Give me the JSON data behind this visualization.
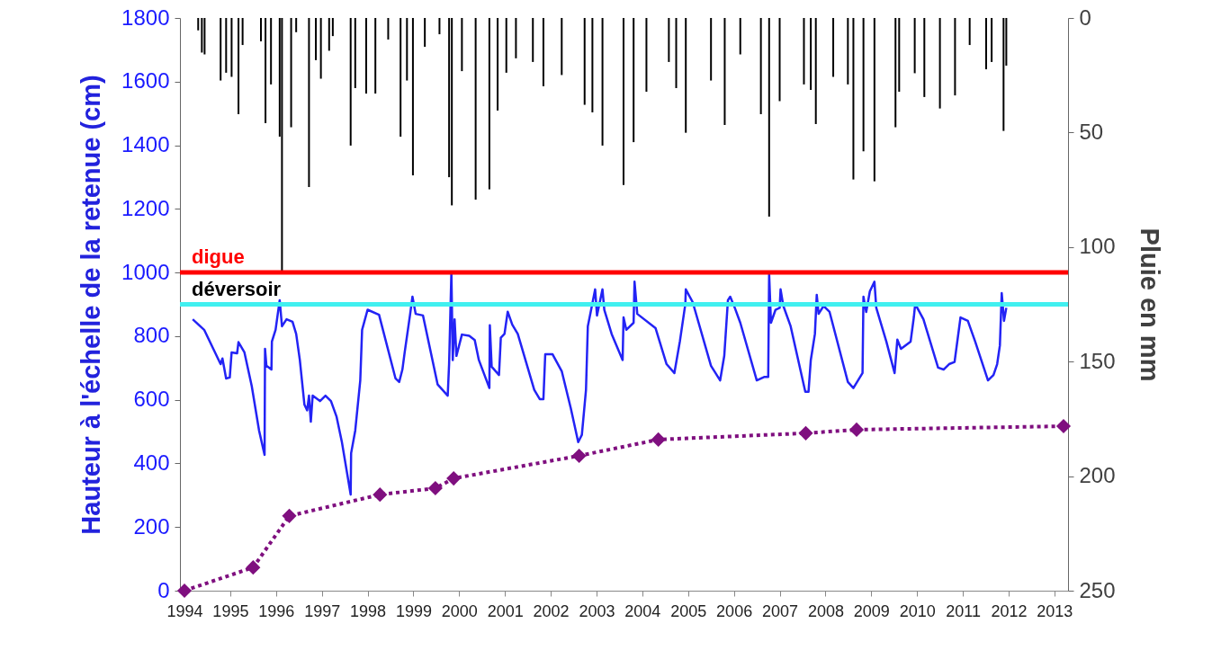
{
  "chart_data": {
    "type": "line",
    "ylabel": "Hauteur à l'échelle de la retenue (cm)",
    "y2label": "Pluie en mm",
    "xlim": [
      1994,
      2013.2
    ],
    "xticks": [
      1994,
      1995,
      1996,
      1997,
      1998,
      1999,
      2000,
      2001,
      2002,
      2003,
      2004,
      2005,
      2006,
      2007,
      2008,
      2009,
      2010,
      2011,
      2012,
      2013
    ],
    "grid": false,
    "ylim": [
      0,
      1800
    ],
    "yticks": [
      0,
      200,
      400,
      600,
      800,
      1000,
      1200,
      1400,
      1600,
      1800
    ],
    "y2lim": [
      250,
      0
    ],
    "y2ticks": [
      0,
      50,
      100,
      150,
      200,
      250
    ],
    "ref_lines": [
      {
        "axis": "y",
        "value": 1000,
        "label": "digue",
        "color": "#ff0000"
      },
      {
        "axis": "y",
        "value": 900,
        "label": "déversoir",
        "color": "#40f0f0"
      }
    ],
    "series": [
      {
        "type": "bar",
        "axis": "y2",
        "color": "#000000",
        "x": [
          1994.3,
          1994.38,
          1994.44,
          1994.79,
          1994.91,
          1995.03,
          1995.18,
          1995.27,
          1995.67,
          1995.77,
          1995.89,
          1996.08,
          1996.13,
          1996.33,
          1996.44,
          1996.72,
          1996.87,
          1996.98,
          1997.16,
          1997.24,
          1997.63,
          1997.73,
          1997.97,
          1998.17,
          1998.45,
          1998.72,
          1998.86,
          1998.99,
          1999.25,
          1999.57,
          1999.78,
          1999.84,
          2000.06,
          2000.36,
          2000.66,
          2000.84,
          2001.03,
          2001.24,
          2001.61,
          2001.84,
          2002.24,
          2002.74,
          2002.91,
          2003.13,
          2003.59,
          2003.81,
          2004.09,
          2004.58,
          2004.74,
          2004.95,
          2005.5,
          2005.8,
          2006.14,
          2006.59,
          2006.77,
          2007.0,
          2007.53,
          2007.68,
          2007.79,
          2008.17,
          2008.49,
          2008.61,
          2008.83,
          2009.07,
          2009.53,
          2009.61,
          2009.95,
          2010.16,
          2010.5,
          2010.83,
          2011.15,
          2011.51,
          2011.63,
          2011.89,
          2011.95
        ],
        "values": [
          5.4,
          15.1,
          15.9,
          27.3,
          23.9,
          25.7,
          42.0,
          11.8,
          10.2,
          45.9,
          29.0,
          51.8,
          110.3,
          47.7,
          6.2,
          73.8,
          18.4,
          26.5,
          14.3,
          7.9,
          55.7,
          30.6,
          33.0,
          33.0,
          9.4,
          51.8,
          27.3,
          68.7,
          12.6,
          7.1,
          69.5,
          81.8,
          23.2,
          79.3,
          74.8,
          40.4,
          23.9,
          17.6,
          19.2,
          29.8,
          24.9,
          37.9,
          41.2,
          55.7,
          72.9,
          54.2,
          32.2,
          19.2,
          30.6,
          50.1,
          27.3,
          46.7,
          15.9,
          42.0,
          86.7,
          36.3,
          29.0,
          31.4,
          46.3,
          25.7,
          29.0,
          70.5,
          58.2,
          71.3,
          47.7,
          32.2,
          24.1,
          34.5,
          39.5,
          33.8,
          11.8,
          22.4,
          19.2,
          49.3,
          20.8
        ]
      },
      {
        "type": "line",
        "color": "#2323f5",
        "x": [
          1994.18,
          1994.43,
          1994.79,
          1994.83,
          1994.91,
          1994.99,
          1995.03,
          1995.15,
          1995.18,
          1995.31,
          1995.47,
          1995.63,
          1995.75,
          1995.76,
          1995.79,
          1995.9,
          1995.91,
          1995.99,
          1996.08,
          1996.13,
          1996.23,
          1996.36,
          1996.44,
          1996.52,
          1996.62,
          1996.68,
          1996.72,
          1996.76,
          1996.8,
          1996.96,
          1997.08,
          1997.2,
          1997.32,
          1997.44,
          1997.63,
          1997.64,
          1997.73,
          1997.84,
          1997.88,
          1998.0,
          1998.25,
          1998.61,
          1998.69,
          1998.76,
          1998.81,
          1998.93,
          1998.98,
          1999.05,
          1999.21,
          1999.53,
          1999.75,
          1999.78,
          1999.83,
          1999.86,
          1999.9,
          1999.94,
          2000.06,
          2000.22,
          2000.34,
          2000.43,
          2000.66,
          2000.67,
          2000.71,
          2000.87,
          2000.91,
          2000.99,
          2001.06,
          2001.16,
          2001.28,
          2001.64,
          2001.76,
          2001.84,
          2001.88,
          2002.04,
          2002.24,
          2002.44,
          2002.6,
          2002.68,
          2002.77,
          2002.81,
          2002.89,
          2002.97,
          2003.01,
          2003.13,
          2003.17,
          2003.33,
          2003.57,
          2003.59,
          2003.65,
          2003.81,
          2003.83,
          2003.89,
          2004.29,
          2004.53,
          2004.7,
          2004.82,
          2004.94,
          2004.95,
          2005.1,
          2005.5,
          2005.7,
          2005.79,
          2005.87,
          2005.92,
          2006.02,
          2006.14,
          2006.5,
          2006.67,
          2006.75,
          2006.77,
          2006.81,
          2006.91,
          2007.0,
          2007.02,
          2007.08,
          2007.24,
          2007.56,
          2007.63,
          2007.68,
          2007.77,
          2007.81,
          2007.85,
          2007.96,
          2008.09,
          2008.49,
          2008.61,
          2008.81,
          2008.83,
          2008.89,
          2008.97,
          2009.07,
          2009.11,
          2009.33,
          2009.51,
          2009.57,
          2009.65,
          2009.86,
          2009.93,
          2009.96,
          2010.14,
          2010.46,
          2010.58,
          2010.7,
          2010.82,
          2010.95,
          2011.11,
          2011.27,
          2011.55,
          2011.67,
          2011.75,
          2011.81,
          2011.85,
          2011.9,
          2011.95
        ],
        "values": [
          853,
          820,
          712,
          730,
          667,
          670,
          749,
          746,
          781,
          749,
          643,
          503,
          427,
          760,
          707,
          695,
          783,
          820,
          913,
          831,
          853,
          845,
          807,
          725,
          585,
          567,
          613,
          531,
          613,
          596,
          613,
          596,
          548,
          466,
          302,
          432,
          503,
          661,
          820,
          883,
          867,
          667,
          656,
          695,
          749,
          870,
          924,
          870,
          865,
          648,
          613,
          712,
          1000,
          725,
          853,
          738,
          805,
          801,
          788,
          725,
          637,
          834,
          704,
          678,
          795,
          807,
          877,
          836,
          807,
          631,
          602,
          602,
          743,
          743,
          690,
          572,
          467,
          490,
          631,
          831,
          889,
          947,
          865,
          947,
          883,
          807,
          725,
          859,
          820,
          842,
          971,
          870,
          825,
          712,
          684,
          783,
          901,
          947,
          907,
          707,
          661,
          738,
          913,
          924,
          889,
          842,
          661,
          672,
          672,
          995,
          842,
          883,
          889,
          947,
          895,
          831,
          625,
          625,
          725,
          807,
          930,
          870,
          895,
          876,
          656,
          637,
          684,
          924,
          876,
          941,
          971,
          889,
          783,
          684,
          789,
          760,
          783,
          859,
          901,
          853,
          701,
          695,
          712,
          719,
          859,
          848,
          783,
          661,
          678,
          712,
          771,
          935,
          848,
          889
        ]
      },
      {
        "type": "line",
        "color": "#7f0f7f",
        "marker": "diamond",
        "line_style": "dotted",
        "x": [
          1994,
          1995.5,
          1996.29,
          1998.27,
          1999.48,
          1999.88,
          2002.62,
          2004.35,
          2007.57,
          2008.68,
          2013.2
        ],
        "values": [
          0,
          73,
          235,
          302,
          322,
          353,
          424,
          475,
          495,
          506,
          517
        ]
      }
    ]
  }
}
